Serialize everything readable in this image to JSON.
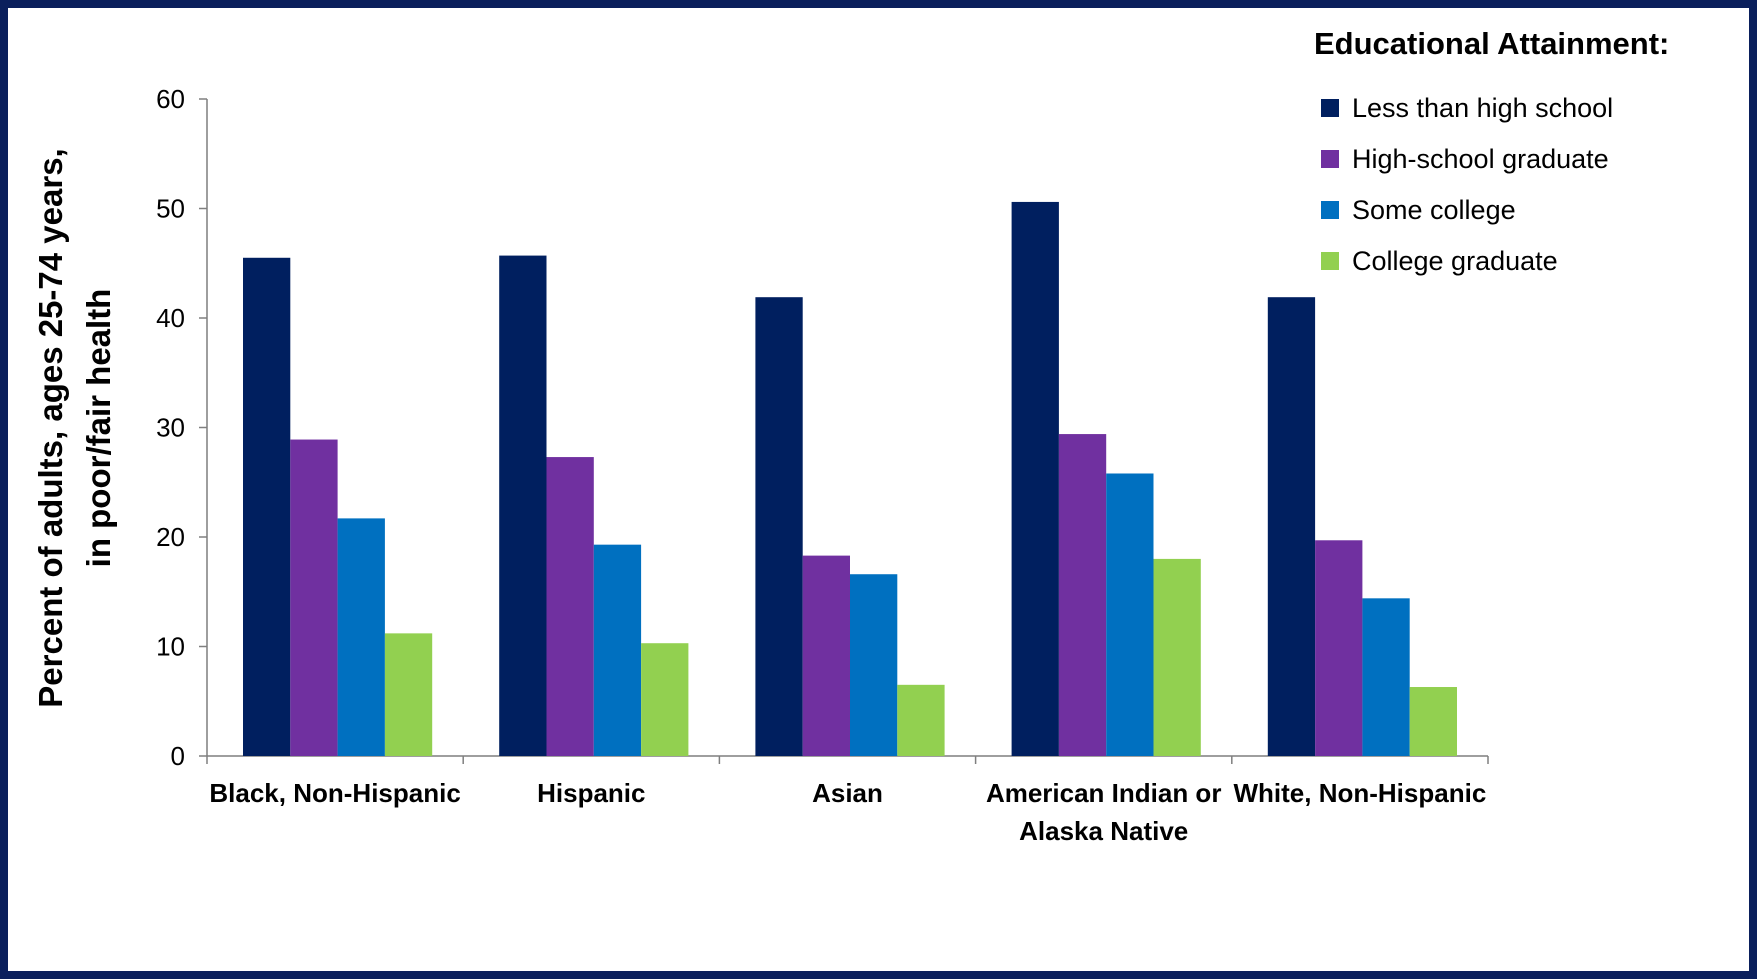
{
  "chart_data": {
    "type": "bar",
    "categories": [
      [
        "Black, Non-Hispanic"
      ],
      [
        "Hispanic"
      ],
      [
        "Asian"
      ],
      [
        "American Indian or",
        "Alaska Native"
      ],
      [
        "White, Non-Hispanic"
      ]
    ],
    "series": [
      {
        "name": "Less than high school",
        "color": "#001f5f",
        "values": [
          45.5,
          45.7,
          41.9,
          50.6,
          41.9
        ]
      },
      {
        "name": "High-school graduate",
        "color": "#7030a0",
        "values": [
          28.9,
          27.3,
          18.3,
          29.4,
          19.7
        ]
      },
      {
        "name": "Some college",
        "color": "#0070c0",
        "values": [
          21.7,
          19.3,
          16.6,
          25.8,
          14.4
        ]
      },
      {
        "name": "College graduate",
        "color": "#92d050",
        "values": [
          11.2,
          10.3,
          6.5,
          18.0,
          6.3
        ]
      }
    ],
    "ylabel": [
      "Percent of adults, ages 25-74 years,",
      "in poor/fair health"
    ],
    "legend_title": "Educational Attainment:",
    "legend_position": "top-right",
    "ylim": [
      0,
      60
    ],
    "yticks": [
      0,
      10,
      20,
      30,
      40,
      50,
      60
    ],
    "grid": false
  }
}
